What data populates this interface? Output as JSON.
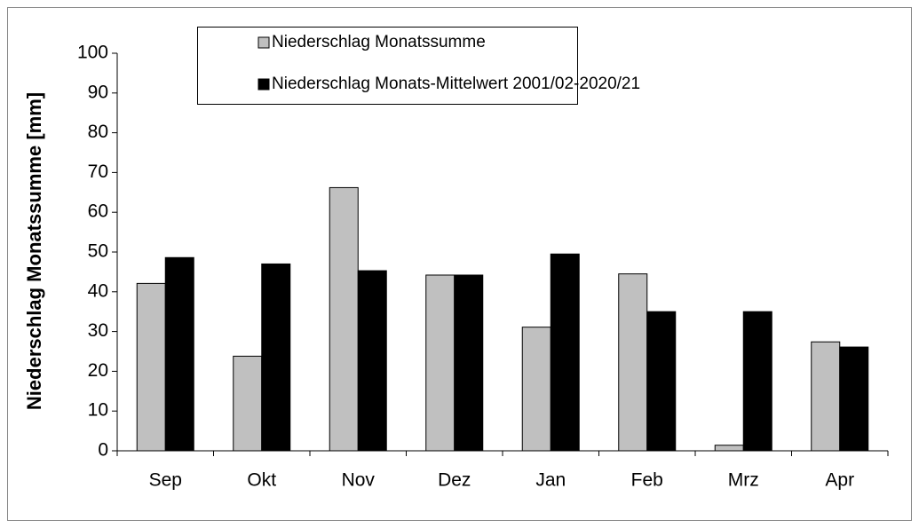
{
  "chart_data": {
    "type": "bar",
    "y_label": "Niederschlag Monatssumme [mm]",
    "categories": [
      "Sep",
      "Okt",
      "Nov",
      "Dez",
      "Jan",
      "Feb",
      "Mrz",
      "Apr"
    ],
    "series": [
      {
        "name": "Niederschlag Monatssumme",
        "color": "#c0c0c0",
        "values": [
          42.1,
          23.8,
          66.2,
          44.2,
          31.1,
          44.5,
          1.4,
          27.4
        ]
      },
      {
        "name": "Niederschlag Monats-Mittelwert 2001/02-2020/21",
        "color": "#000000",
        "values": [
          48.6,
          47.0,
          45.3,
          44.2,
          49.5,
          35.0,
          35.0,
          26.1
        ]
      }
    ],
    "ylim": [
      0,
      100
    ],
    "yticks": [
      0,
      10,
      20,
      30,
      40,
      50,
      60,
      70,
      80,
      90,
      100
    ],
    "grid": false,
    "legend": "top"
  }
}
